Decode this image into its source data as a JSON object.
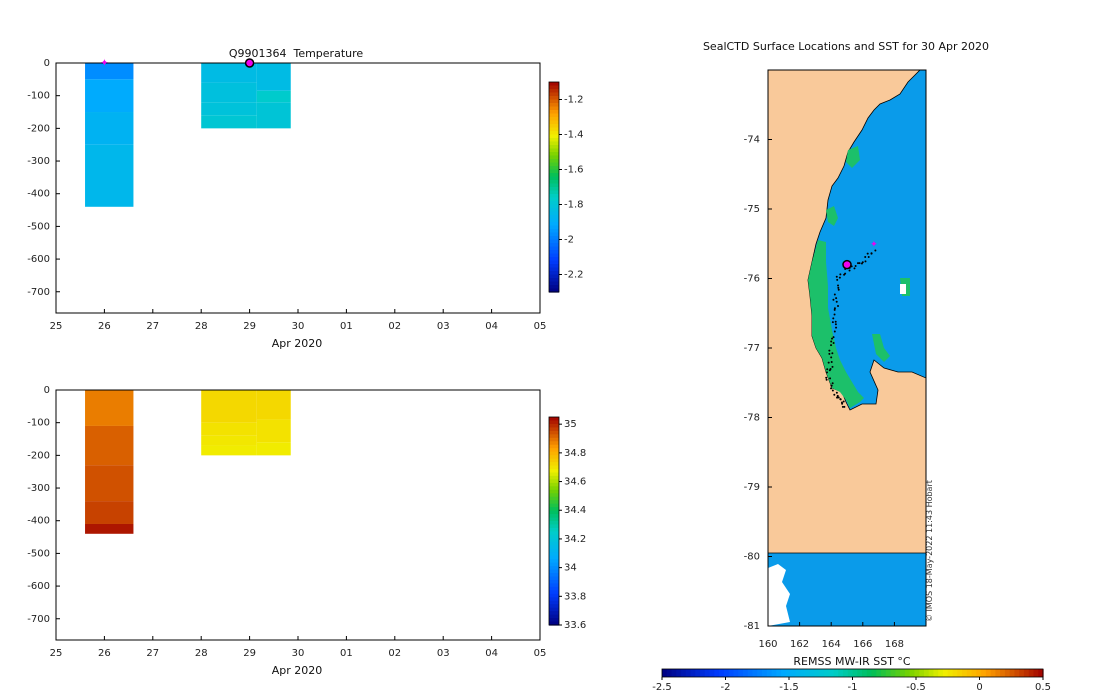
{
  "chart_data": [
    {
      "type": "heatmap",
      "title": "Q9901364  Temperature",
      "xlabel": "Apr 2020",
      "ylabel": "",
      "x_ticks": [
        "25",
        "26",
        "27",
        "28",
        "29",
        "30",
        "01",
        "02",
        "03",
        "04",
        "05"
      ],
      "x_range_days": [
        25,
        35
      ],
      "y_ticks": [
        0,
        -100,
        -200,
        -300,
        -400,
        -500,
        -600,
        -700
      ],
      "ylim": [
        -765,
        0
      ],
      "profiles": [
        {
          "day_start": 25.6,
          "day_end": 26.6,
          "depth": 440,
          "layers": [
            {
              "from": 0,
              "to": 50,
              "value": -1.97
            },
            {
              "from": 50,
              "to": 150,
              "value": -1.91
            },
            {
              "from": 150,
              "to": 250,
              "value": -1.88
            },
            {
              "from": 250,
              "to": 440,
              "value": -1.86
            }
          ]
        },
        {
          "day_start": 28.0,
          "day_end": 29.15,
          "depth": 200,
          "layers": [
            {
              "from": 0,
              "to": 60,
              "value": -1.84
            },
            {
              "from": 60,
              "to": 120,
              "value": -1.82
            },
            {
              "from": 120,
              "to": 160,
              "value": -1.81
            },
            {
              "from": 160,
              "to": 200,
              "value": -1.79
            }
          ]
        },
        {
          "day_start": 29.15,
          "day_end": 29.85,
          "depth": 200,
          "layers": [
            {
              "from": 0,
              "to": 85,
              "value": -1.84
            },
            {
              "from": 85,
              "to": 120,
              "value": -1.77
            },
            {
              "from": 120,
              "to": 200,
              "value": -1.8
            }
          ]
        }
      ],
      "markers": [
        {
          "day": 26.0,
          "depth": 0,
          "kind": "magenta-star"
        },
        {
          "day": 29.0,
          "depth": 0,
          "kind": "current-position-circle"
        }
      ],
      "colorbar": {
        "ticks": [
          "-1.2",
          "-1.4",
          "-1.6",
          "-1.8",
          "-2",
          "-2.2"
        ],
        "range": [
          -2.3,
          -1.1
        ]
      }
    },
    {
      "type": "heatmap",
      "title": "",
      "xlabel": "Apr 2020",
      "x_ticks": [
        "25",
        "26",
        "27",
        "28",
        "29",
        "30",
        "01",
        "02",
        "03",
        "04",
        "05"
      ],
      "x_range_days": [
        25,
        35
      ],
      "y_ticks": [
        0,
        -100,
        -200,
        -300,
        -400,
        -500,
        -600,
        -700
      ],
      "ylim": [
        -765,
        0
      ],
      "profiles": [
        {
          "day_start": 25.6,
          "day_end": 26.6,
          "depth": 440,
          "layers": [
            {
              "from": 0,
              "to": 110,
              "value": 34.88
            },
            {
              "from": 110,
              "to": 230,
              "value": 34.92
            },
            {
              "from": 230,
              "to": 340,
              "value": 34.94
            },
            {
              "from": 340,
              "to": 410,
              "value": 34.96
            },
            {
              "from": 410,
              "to": 440,
              "value": 35.02
            }
          ]
        },
        {
          "day_start": 28.0,
          "day_end": 29.15,
          "depth": 200,
          "layers": [
            {
              "from": 0,
              "to": 100,
              "value": 34.72
            },
            {
              "from": 100,
              "to": 140,
              "value": 34.7
            },
            {
              "from": 140,
              "to": 170,
              "value": 34.69
            },
            {
              "from": 170,
              "to": 200,
              "value": 34.68
            }
          ]
        },
        {
          "day_start": 29.15,
          "day_end": 29.85,
          "depth": 200,
          "layers": [
            {
              "from": 0,
              "to": 90,
              "value": 34.72
            },
            {
              "from": 90,
              "to": 160,
              "value": 34.7
            },
            {
              "from": 160,
              "to": 200,
              "value": 34.68
            }
          ]
        }
      ],
      "colorbar": {
        "ticks": [
          "35",
          "34.8",
          "34.6",
          "34.4",
          "34.2",
          "34",
          "33.8",
          "33.6"
        ],
        "range": [
          33.6,
          35.05
        ]
      }
    },
    {
      "type": "map",
      "title": "SealCTD Surface Locations and SST for 30 Apr 2020",
      "lon_ticks": [
        "160",
        "162",
        "164",
        "166",
        "168"
      ],
      "lon_range": [
        160,
        170
      ],
      "lat_ticks": [
        "-74",
        "-75",
        "-76",
        "-77",
        "-78",
        "-79",
        "-80",
        "-81"
      ],
      "lat_range": [
        -81,
        -73
      ],
      "colorbar_label": "REMSS MW-IR SST °C",
      "colorbar_ticks": [
        "-2.5",
        "-2",
        "-1.5",
        "-1",
        "-0.5",
        "0",
        "0.5"
      ],
      "colorbar_range": [
        -2.5,
        0.5
      ],
      "credit": "© IMOS 18-May-2022 11:43 Hobart",
      "current_position": {
        "lon": 165.0,
        "lat": -75.8
      },
      "previous_position": {
        "lon": 166.7,
        "lat": -75.5
      }
    }
  ],
  "colors": {
    "land": "#f9c99a",
    "sea_ice_sst": "#0a9bea",
    "warm_edge_sst": "#1cc06a",
    "marker": "#ee00ee"
  }
}
